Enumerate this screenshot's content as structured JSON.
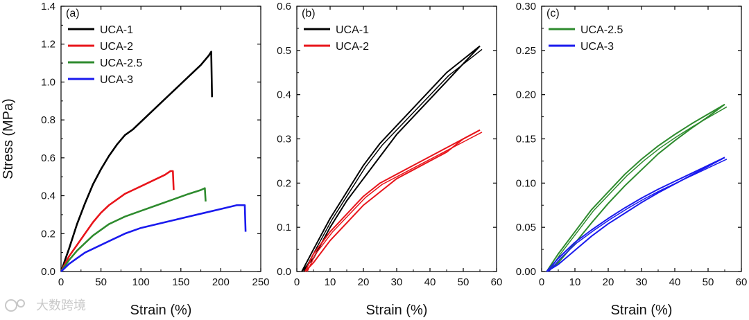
{
  "watermark": "大数跨境",
  "chart_data": [
    {
      "panel": "(a)",
      "type": "line",
      "xlabel": "Strain (%)",
      "ylabel": "Stress (MPa)",
      "xlim": [
        0,
        250
      ],
      "ylim": [
        0,
        1.4
      ],
      "xticks": [
        0,
        50,
        100,
        150,
        200,
        250
      ],
      "yticks": [
        0.0,
        0.2,
        0.4,
        0.6,
        0.8,
        1.0,
        1.2,
        1.4
      ],
      "ytick_decimals": 1,
      "legend_position": "top-left",
      "series": [
        {
          "name": "UCA-1",
          "color": "#000000",
          "x": [
            0,
            5,
            10,
            20,
            30,
            40,
            50,
            60,
            70,
            80,
            90,
            100,
            120,
            140,
            160,
            175,
            185,
            188,
            189
          ],
          "y": [
            0,
            0.06,
            0.12,
            0.25,
            0.36,
            0.46,
            0.54,
            0.61,
            0.67,
            0.72,
            0.75,
            0.79,
            0.87,
            0.95,
            1.03,
            1.09,
            1.14,
            1.16,
            0.92
          ]
        },
        {
          "name": "UCA-2",
          "color": "#e8141a",
          "x": [
            0,
            5,
            10,
            20,
            30,
            40,
            50,
            60,
            70,
            80,
            90,
            100,
            110,
            120,
            130,
            137,
            140,
            141
          ],
          "y": [
            0,
            0.04,
            0.08,
            0.14,
            0.2,
            0.26,
            0.31,
            0.35,
            0.38,
            0.41,
            0.43,
            0.45,
            0.47,
            0.49,
            0.51,
            0.53,
            0.53,
            0.43
          ]
        },
        {
          "name": "UCA-2.5",
          "color": "#2e8b2e",
          "x": [
            0,
            5,
            10,
            20,
            30,
            40,
            50,
            60,
            70,
            80,
            100,
            120,
            140,
            160,
            175,
            180,
            181
          ],
          "y": [
            0,
            0.03,
            0.06,
            0.11,
            0.15,
            0.19,
            0.22,
            0.25,
            0.27,
            0.29,
            0.32,
            0.35,
            0.38,
            0.41,
            0.43,
            0.44,
            0.37
          ]
        },
        {
          "name": "UCA-3",
          "color": "#1a1aee",
          "x": [
            0,
            5,
            10,
            20,
            30,
            40,
            60,
            80,
            100,
            120,
            140,
            160,
            180,
            200,
            220,
            230,
            231
          ],
          "y": [
            0,
            0.02,
            0.04,
            0.07,
            0.1,
            0.12,
            0.16,
            0.2,
            0.23,
            0.25,
            0.27,
            0.29,
            0.31,
            0.33,
            0.35,
            0.35,
            0.21
          ]
        }
      ]
    },
    {
      "panel": "(b)",
      "type": "line",
      "xlabel": "Strain (%)",
      "ylabel": "",
      "xlim": [
        0,
        60
      ],
      "ylim": [
        0,
        0.6
      ],
      "xticks": [
        0,
        10,
        20,
        30,
        40,
        50,
        60
      ],
      "yticks": [
        0.0,
        0.1,
        0.2,
        0.3,
        0.4,
        0.5,
        0.6
      ],
      "ytick_decimals": 1,
      "legend_position": "top-left",
      "series": [
        {
          "name": "UCA-1",
          "color": "#000000",
          "hysteresis": true,
          "x": [
            1.5,
            5,
            10,
            15,
            20,
            25,
            30,
            35,
            40,
            45,
            50,
            55
          ],
          "y_load": [
            0,
            0.05,
            0.12,
            0.18,
            0.24,
            0.29,
            0.33,
            0.37,
            0.41,
            0.45,
            0.48,
            0.51
          ],
          "y_unload": [
            0,
            0.03,
            0.1,
            0.16,
            0.21,
            0.26,
            0.31,
            0.35,
            0.39,
            0.43,
            0.47,
            0.51
          ]
        },
        {
          "name": "UCA-2",
          "color": "#e8141a",
          "hysteresis": true,
          "x": [
            2.5,
            5,
            10,
            15,
            20,
            25,
            30,
            35,
            40,
            45,
            50,
            55
          ],
          "y_load": [
            0,
            0.04,
            0.09,
            0.13,
            0.17,
            0.2,
            0.22,
            0.24,
            0.26,
            0.28,
            0.3,
            0.32
          ],
          "y_unload": [
            0,
            0.02,
            0.07,
            0.11,
            0.15,
            0.18,
            0.21,
            0.23,
            0.25,
            0.27,
            0.3,
            0.32
          ]
        }
      ]
    },
    {
      "panel": "(c)",
      "type": "line",
      "xlabel": "Strain (%)",
      "ylabel": "",
      "xlim": [
        0,
        60
      ],
      "ylim": [
        0,
        0.3
      ],
      "xticks": [
        0,
        10,
        20,
        30,
        40,
        50,
        60
      ],
      "yticks": [
        0.0,
        0.05,
        0.1,
        0.15,
        0.2,
        0.25,
        0.3
      ],
      "ytick_decimals": 2,
      "legend_position": "top-left",
      "series": [
        {
          "name": "UCA-2.5",
          "color": "#2e8b2e",
          "hysteresis": true,
          "x": [
            1.5,
            5,
            10,
            15,
            20,
            25,
            30,
            35,
            40,
            45,
            50,
            55
          ],
          "y_load": [
            0,
            0.02,
            0.045,
            0.07,
            0.09,
            0.11,
            0.127,
            0.142,
            0.155,
            0.167,
            0.178,
            0.189
          ],
          "y_unload": [
            0,
            0.01,
            0.032,
            0.055,
            0.077,
            0.097,
            0.115,
            0.133,
            0.148,
            0.162,
            0.175,
            0.189
          ]
        },
        {
          "name": "UCA-3",
          "color": "#1a1aee",
          "hysteresis": true,
          "x": [
            1.5,
            5,
            10,
            15,
            20,
            25,
            30,
            35,
            40,
            45,
            50,
            55
          ],
          "y_load": [
            0,
            0.015,
            0.033,
            0.047,
            0.06,
            0.072,
            0.083,
            0.093,
            0.102,
            0.111,
            0.12,
            0.129
          ],
          "y_unload": [
            0,
            0.008,
            0.024,
            0.04,
            0.054,
            0.066,
            0.078,
            0.089,
            0.099,
            0.109,
            0.119,
            0.129
          ]
        }
      ]
    }
  ]
}
